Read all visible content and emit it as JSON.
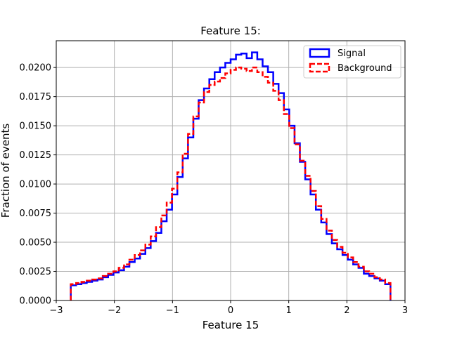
{
  "chart_data": {
    "type": "line",
    "title": "Feature 15:",
    "xlabel": "Feature 15",
    "ylabel": "Fraction of events",
    "xlim": [
      -3,
      3
    ],
    "ylim": [
      0,
      0.0223
    ],
    "x_ticks": [
      -3,
      -2,
      -1,
      0,
      1,
      2,
      3
    ],
    "x_tick_labels": [
      "−3",
      "−2",
      "−1",
      "0",
      "1",
      "2",
      "3"
    ],
    "y_ticks": [
      0,
      0.0025,
      0.005,
      0.0075,
      0.01,
      0.0125,
      0.015,
      0.0175,
      0.02
    ],
    "y_tick_labels": [
      "0.0000",
      "0.0025",
      "0.0050",
      "0.0075",
      "0.0100",
      "0.0125",
      "0.0150",
      "0.0175",
      "0.0200"
    ],
    "grid": true,
    "legend_position": "top-right",
    "bins": {
      "start": -2.75,
      "end": 2.75,
      "count": 60
    },
    "series": [
      {
        "name": "Signal",
        "color": "#0000ff",
        "style": "solid",
        "values": [
          0.0013,
          0.0014,
          0.0015,
          0.0016,
          0.0017,
          0.0018,
          0.002,
          0.0022,
          0.0024,
          0.0026,
          0.0029,
          0.0033,
          0.0036,
          0.004,
          0.0045,
          0.0051,
          0.0058,
          0.0068,
          0.0078,
          0.0091,
          0.0106,
          0.0122,
          0.014,
          0.0156,
          0.0172,
          0.0182,
          0.019,
          0.0196,
          0.02,
          0.0204,
          0.0207,
          0.0211,
          0.0212,
          0.0208,
          0.0213,
          0.0207,
          0.0201,
          0.0196,
          0.0186,
          0.0178,
          0.0164,
          0.015,
          0.0135,
          0.0119,
          0.0104,
          0.0091,
          0.0078,
          0.0067,
          0.0057,
          0.0049,
          0.0044,
          0.0039,
          0.0035,
          0.0031,
          0.0028,
          0.0023,
          0.0021,
          0.0019,
          0.0017,
          0.0014
        ]
      },
      {
        "name": "Background",
        "color": "#ff0000",
        "style": "dashed",
        "values": [
          0.0014,
          0.0015,
          0.0016,
          0.0017,
          0.0018,
          0.0019,
          0.0021,
          0.0023,
          0.0025,
          0.0028,
          0.0031,
          0.0035,
          0.0039,
          0.0043,
          0.0048,
          0.0055,
          0.0063,
          0.0073,
          0.0084,
          0.0096,
          0.011,
          0.0126,
          0.0143,
          0.0158,
          0.017,
          0.0179,
          0.0185,
          0.0188,
          0.0191,
          0.0195,
          0.0198,
          0.02,
          0.0199,
          0.0197,
          0.02,
          0.0196,
          0.0192,
          0.0187,
          0.018,
          0.0172,
          0.016,
          0.0148,
          0.0134,
          0.012,
          0.0107,
          0.0094,
          0.0081,
          0.007,
          0.006,
          0.0052,
          0.0046,
          0.0041,
          0.0037,
          0.0033,
          0.0029,
          0.0025,
          0.0023,
          0.002,
          0.0018,
          0.0015
        ]
      }
    ]
  }
}
